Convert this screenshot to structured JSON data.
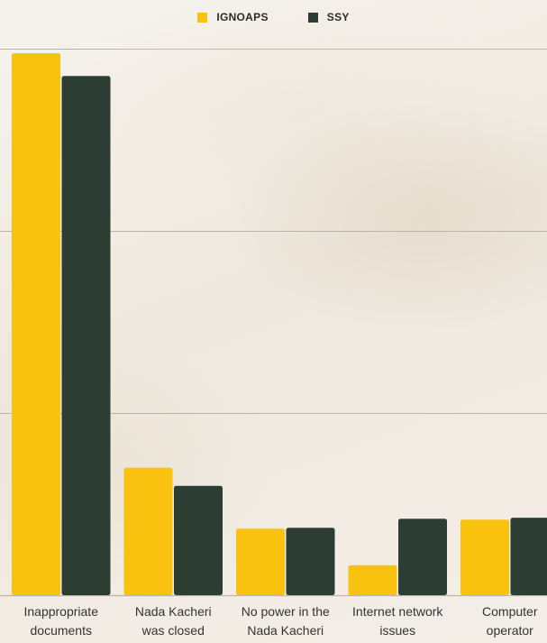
{
  "chart_data": {
    "type": "bar",
    "categories": [
      [
        "Inappropriate",
        "documents"
      ],
      [
        "Nada Kacheri",
        "was closed"
      ],
      [
        "No power in the",
        "Nada Kacheri"
      ],
      [
        "Internet network",
        "issues"
      ],
      [
        "Computer",
        "operator"
      ]
    ],
    "series": [
      {
        "name": "IGNOAPS",
        "color": "#f8c20e",
        "values": [
          59.5,
          14.0,
          7.3,
          3.3,
          8.3
        ]
      },
      {
        "name": "SSY",
        "color": "#2c3e34",
        "values": [
          57.0,
          12.0,
          7.4,
          8.4,
          8.5
        ]
      }
    ],
    "ylim": [
      0,
      60
    ],
    "gridlines": [
      0,
      20,
      40,
      60
    ],
    "legend_position": "top-center",
    "grid": true
  },
  "colors": {
    "gridline": "#b9b4ac",
    "axis_text": "#333333"
  }
}
